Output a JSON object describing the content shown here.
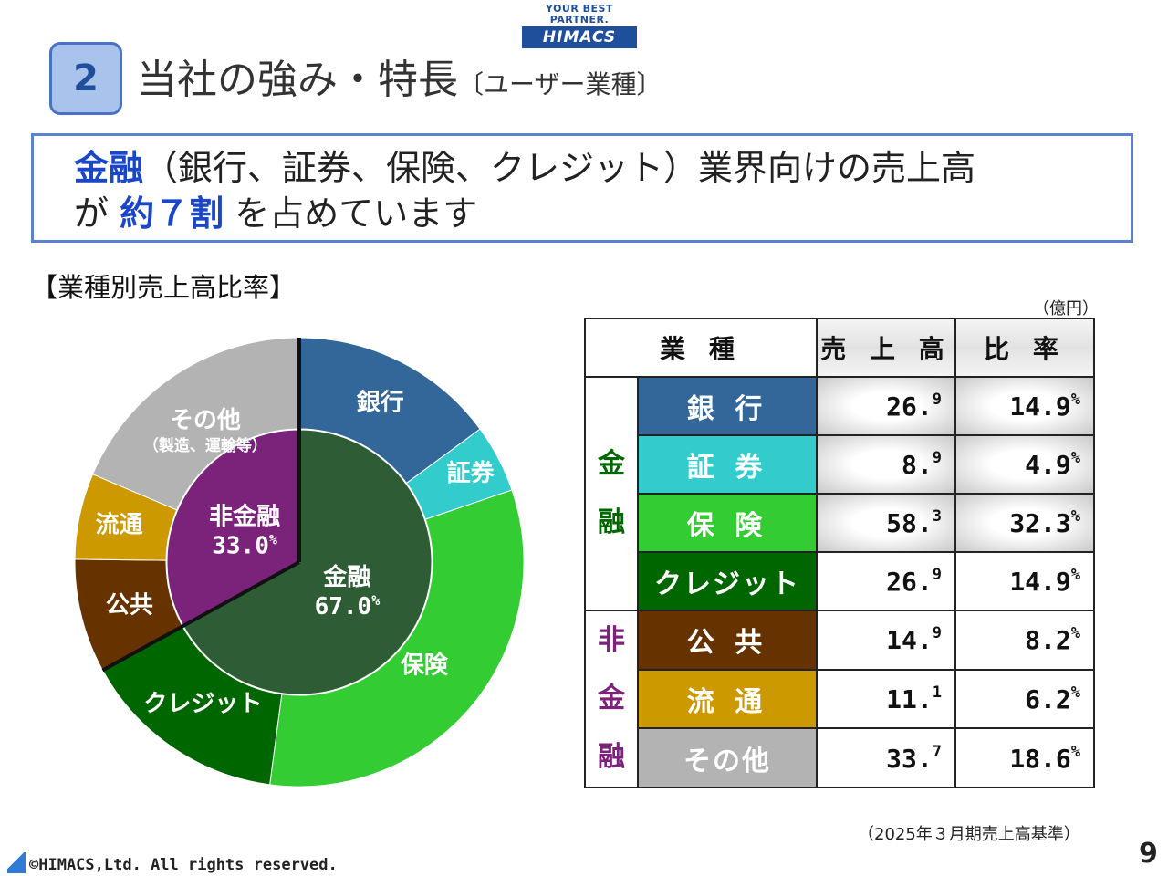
{
  "logo": {
    "tagline": "YOUR BEST PARTNER.",
    "name": "HIMACS"
  },
  "header": {
    "section_number": "2",
    "title": "当社の強み・特長",
    "subtitle": "〔ユーザー業種〕"
  },
  "headline": {
    "line1_highlight": "金融",
    "line1_rest": "（銀行、証券、保険、クレジット）業界向けの売上高",
    "line2_prefix": "が ",
    "line2_highlight": "約７割",
    "line2_suffix": " を占めています"
  },
  "section_label": "【業種別売上高比率】",
  "colors": {
    "bank": "#336699",
    "securities": "#33cccc",
    "insurance": "#33cc33",
    "credit": "#006600",
    "public": "#663300",
    "distribution": "#cc9900",
    "other": "#b3b3b3",
    "finance_inner": "#2e5c34",
    "nonfinance_inner": "#7b237b",
    "finance_text": "#006600",
    "nonfinance_text": "#7b237b",
    "accent_blue": "#1a46c8"
  },
  "chart_data": {
    "type": "pie",
    "title": "業種別売上高比率",
    "outer": [
      {
        "label": "銀行",
        "value": 14.9,
        "color": "#336699"
      },
      {
        "label": "証券",
        "value": 4.9,
        "color": "#33cccc"
      },
      {
        "label": "保険",
        "value": 32.3,
        "color": "#33cc33"
      },
      {
        "label": "クレジット",
        "value": 14.9,
        "color": "#006600"
      },
      {
        "label": "公共",
        "value": 8.2,
        "color": "#663300"
      },
      {
        "label": "流通",
        "value": 6.2,
        "color": "#cc9900"
      },
      {
        "label": "その他",
        "sublabel": "（製造、運輸等）",
        "value": 18.6,
        "color": "#b3b3b3"
      }
    ],
    "inner": [
      {
        "label": "金融",
        "value": 67.0,
        "display": "67.0",
        "color": "#2e5c34"
      },
      {
        "label": "非金融",
        "value": 33.0,
        "display": "33.0",
        "color": "#7b237b"
      }
    ],
    "percent_suffix": "%"
  },
  "table": {
    "unit_note": "（億円）",
    "headers": {
      "industry": "業 種",
      "sales": "売 上 高",
      "ratio": "比 率"
    },
    "groups": {
      "finance_chars": [
        "金",
        "融"
      ],
      "nonfinance_chars": [
        "非",
        "金",
        "融"
      ]
    },
    "percent_suffix": "%",
    "rows": [
      {
        "name": "銀 行",
        "sales_int": "26.",
        "sales_dec": "9",
        "ratio": "14.9"
      },
      {
        "name": "証 券",
        "sales_int": "8.",
        "sales_dec": "9",
        "ratio": "4.9"
      },
      {
        "name": "保 険",
        "sales_int": "58.",
        "sales_dec": "3",
        "ratio": "32.3"
      },
      {
        "name": "クレジット",
        "sales_int": "26.",
        "sales_dec": "9",
        "ratio": "14.9"
      },
      {
        "name": "公 共",
        "sales_int": "14.",
        "sales_dec": "9",
        "ratio": "8.2"
      },
      {
        "name": "流 通",
        "sales_int": "11.",
        "sales_dec": "1",
        "ratio": "6.2"
      },
      {
        "name": "その他",
        "sales_int": "33.",
        "sales_dec": "7",
        "ratio": "18.6"
      }
    ]
  },
  "basis_note": "（2025年３月期売上高基準）",
  "footer": {
    "copyright": "©HIMACS,Ltd. All rights reserved."
  },
  "page_number": "9"
}
